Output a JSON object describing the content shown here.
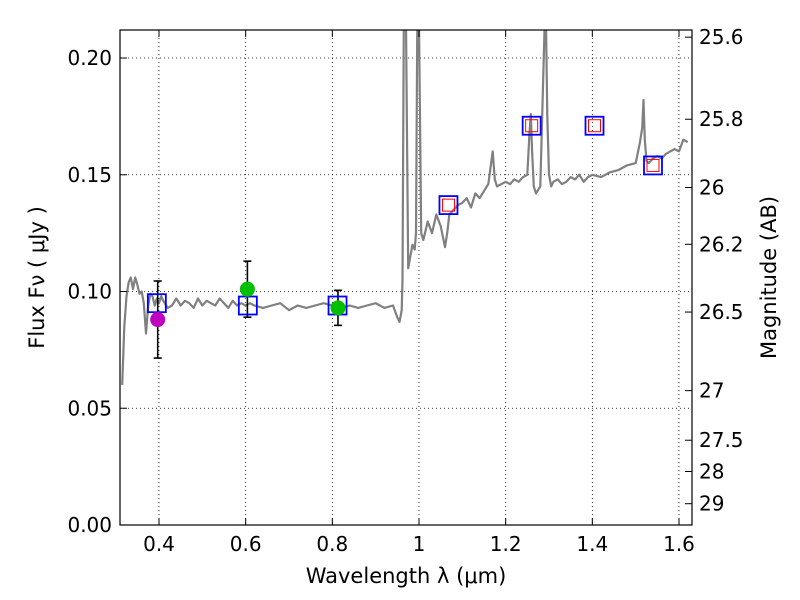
{
  "chart_data": {
    "type": "scatter",
    "title": "",
    "xlabel": "Wavelength  λ (μm)",
    "ylabel": "Flux  Fν  ( μJy )",
    "ylabel_right": "Magnitude (AB)",
    "xlim": [
      0.31,
      1.63
    ],
    "ylim": [
      0.0,
      0.212
    ],
    "grid": true,
    "x_ticks": [
      0.4,
      0.6,
      0.8,
      1.0,
      1.2,
      1.4,
      1.6
    ],
    "x_tick_labels": [
      "0.4",
      "0.6",
      "0.8",
      "1",
      "1.2",
      "1.4",
      "1.6"
    ],
    "y_ticks": [
      0.0,
      0.05,
      0.1,
      0.15,
      0.2
    ],
    "y_tick_labels": [
      "0.00",
      "0.05",
      "0.10",
      "0.15",
      "0.20"
    ],
    "right_ticks": [
      25.6,
      25.8,
      26,
      26.2,
      26.5,
      27,
      27.5,
      28,
      29
    ],
    "right_tick_labels": [
      "25.6",
      "25.8",
      "26",
      "26.2",
      "26.5",
      "27",
      "27.5",
      "28",
      "29"
    ],
    "colors": {
      "spectrum": "#808080",
      "model_box": "#0000ff",
      "model_box_inner": "#ff0000",
      "obs_magenta": "#bf00bf",
      "obs_green": "#00bf00",
      "errorbar": "#000000",
      "grid": "#000000"
    },
    "series": [
      {
        "name": "model spectrum",
        "kind": "line",
        "x": [
          0.315,
          0.32,
          0.325,
          0.33,
          0.335,
          0.34,
          0.345,
          0.35,
          0.355,
          0.36,
          0.365,
          0.37,
          0.375,
          0.38,
          0.385,
          0.39,
          0.395,
          0.4,
          0.405,
          0.41,
          0.42,
          0.43,
          0.44,
          0.45,
          0.46,
          0.47,
          0.48,
          0.49,
          0.5,
          0.51,
          0.52,
          0.53,
          0.54,
          0.55,
          0.56,
          0.57,
          0.58,
          0.59,
          0.6,
          0.61,
          0.62,
          0.64,
          0.66,
          0.68,
          0.7,
          0.72,
          0.74,
          0.76,
          0.78,
          0.8,
          0.82,
          0.84,
          0.86,
          0.88,
          0.9,
          0.92,
          0.94,
          0.95,
          0.955,
          0.96,
          0.962,
          0.965,
          0.97,
          0.975,
          0.98,
          0.985,
          0.99,
          0.993,
          0.996,
          1.0,
          1.005,
          1.01,
          1.02,
          1.03,
          1.04,
          1.05,
          1.06,
          1.065,
          1.07,
          1.08,
          1.09,
          1.1,
          1.11,
          1.12,
          1.13,
          1.14,
          1.15,
          1.16,
          1.17,
          1.175,
          1.18,
          1.19,
          1.2,
          1.21,
          1.22,
          1.23,
          1.24,
          1.25,
          1.255,
          1.258,
          1.261,
          1.265,
          1.27,
          1.28,
          1.285,
          1.29,
          1.293,
          1.296,
          1.3,
          1.305,
          1.31,
          1.32,
          1.33,
          1.34,
          1.35,
          1.36,
          1.37,
          1.38,
          1.39,
          1.4,
          1.42,
          1.44,
          1.46,
          1.48,
          1.5,
          1.51,
          1.515,
          1.518,
          1.521,
          1.525,
          1.53,
          1.54,
          1.55,
          1.56,
          1.57,
          1.58,
          1.59,
          1.6,
          1.61,
          1.62
        ],
        "y": [
          0.06,
          0.085,
          0.098,
          0.104,
          0.106,
          0.101,
          0.106,
          0.103,
          0.099,
          0.1,
          0.095,
          0.082,
          0.094,
          0.099,
          0.098,
          0.094,
          0.097,
          0.095,
          0.098,
          0.096,
          0.093,
          0.094,
          0.097,
          0.094,
          0.096,
          0.095,
          0.093,
          0.097,
          0.094,
          0.096,
          0.095,
          0.094,
          0.097,
          0.095,
          0.093,
          0.096,
          0.094,
          0.095,
          0.094,
          0.095,
          0.094,
          0.093,
          0.094,
          0.095,
          0.092,
          0.094,
          0.093,
          0.094,
          0.095,
          0.094,
          0.093,
          0.094,
          0.093,
          0.094,
          0.095,
          0.093,
          0.094,
          0.089,
          0.087,
          0.092,
          0.105,
          0.215,
          0.215,
          0.11,
          0.115,
          0.12,
          0.118,
          0.125,
          0.215,
          0.215,
          0.125,
          0.122,
          0.13,
          0.125,
          0.133,
          0.128,
          0.119,
          0.125,
          0.133,
          0.135,
          0.137,
          0.138,
          0.14,
          0.136,
          0.142,
          0.14,
          0.143,
          0.146,
          0.16,
          0.148,
          0.145,
          0.146,
          0.147,
          0.146,
          0.148,
          0.147,
          0.149,
          0.15,
          0.168,
          0.176,
          0.16,
          0.145,
          0.142,
          0.145,
          0.18,
          0.215,
          0.215,
          0.175,
          0.15,
          0.145,
          0.147,
          0.148,
          0.146,
          0.147,
          0.149,
          0.148,
          0.15,
          0.147,
          0.149,
          0.15,
          0.149,
          0.151,
          0.152,
          0.154,
          0.155,
          0.164,
          0.17,
          0.182,
          0.165,
          0.156,
          0.155,
          0.157,
          0.158,
          0.157,
          0.159,
          0.16,
          0.161,
          0.16,
          0.165,
          0.164
        ]
      },
      {
        "name": "synthetic photometry",
        "kind": "box",
        "x": [
          0.395,
          0.605,
          0.812,
          1.068,
          1.26,
          1.405,
          1.54
        ],
        "y": [
          0.095,
          0.094,
          0.094,
          0.137,
          0.171,
          0.171,
          0.154
        ],
        "inner": [
          false,
          false,
          false,
          true,
          true,
          true,
          true
        ]
      },
      {
        "name": "observed photometry",
        "kind": "point",
        "x": [
          0.397,
          0.604,
          0.813
        ],
        "y": [
          0.088,
          0.101,
          0.093
        ],
        "yerr": [
          0.0165,
          0.012,
          0.0075
        ],
        "colors": [
          "#bf00bf",
          "#00bf00",
          "#00bf00"
        ]
      }
    ]
  }
}
